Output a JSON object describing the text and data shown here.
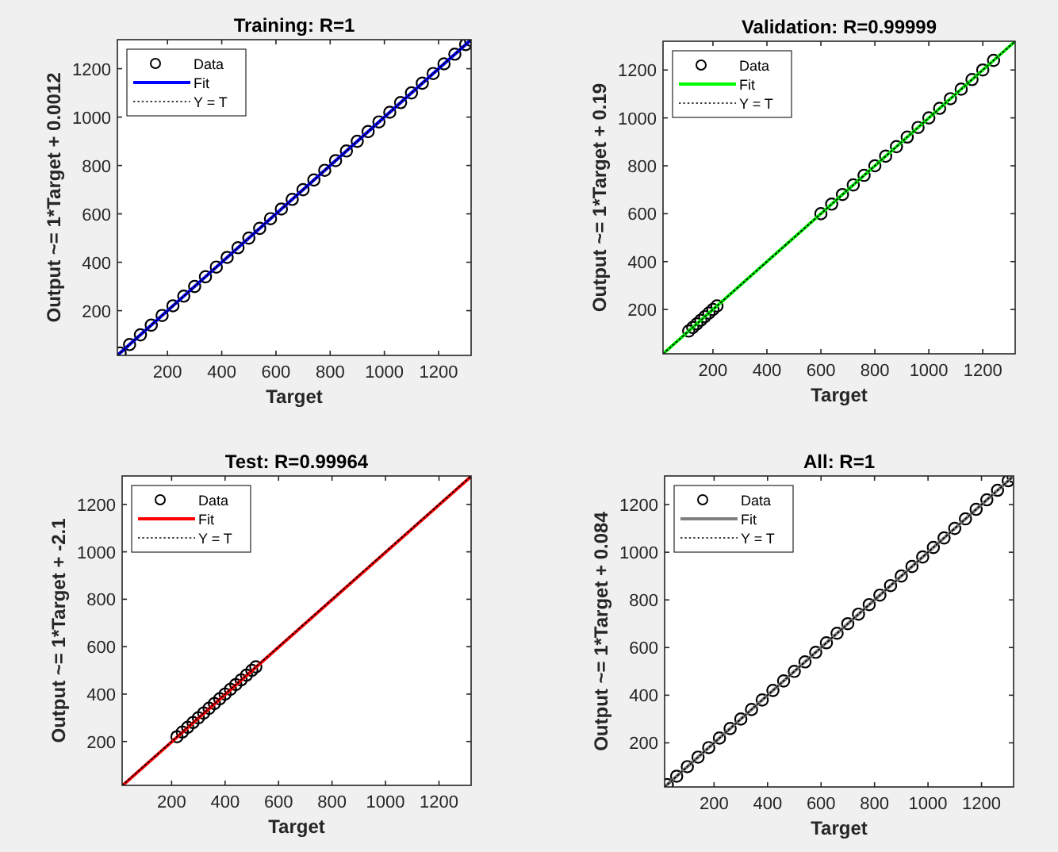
{
  "chart_data": [
    {
      "type": "scatter",
      "title": "Training: R=1",
      "xlabel": "Target",
      "ylabel": "Output ~= 1*Target + 0.0012",
      "xlim": [
        15,
        1320
      ],
      "ylim": [
        15,
        1320
      ],
      "xticks": [
        200,
        400,
        600,
        800,
        1000,
        1200
      ],
      "yticks": [
        200,
        400,
        600,
        800,
        1000,
        1200
      ],
      "grid": false,
      "legend": "top left",
      "series": [
        {
          "name": "Data",
          "marker": "circle",
          "color": "#000000",
          "x": [
            25,
            60,
            100,
            140,
            180,
            220,
            260,
            300,
            340,
            380,
            420,
            460,
            500,
            540,
            580,
            620,
            660,
            700,
            740,
            780,
            820,
            860,
            900,
            940,
            980,
            1020,
            1060,
            1100,
            1140,
            1180,
            1220,
            1260,
            1300,
            1318
          ],
          "values": [
            25,
            60,
            100,
            140,
            180,
            220,
            260,
            300,
            340,
            380,
            420,
            460,
            500,
            540,
            580,
            620,
            660,
            700,
            740,
            780,
            820,
            860,
            900,
            940,
            980,
            1020,
            1060,
            1100,
            1140,
            1180,
            1220,
            1260,
            1300,
            1318
          ]
        },
        {
          "name": "Fit",
          "type": "line",
          "line_style": "solid",
          "color": "#0000ff",
          "x": [
            15,
            1320
          ],
          "values": [
            15,
            1320
          ]
        },
        {
          "name": "Y = T",
          "type": "line",
          "line_style": "dotted",
          "color": "#000000",
          "x": [
            15,
            1320
          ],
          "values": [
            15,
            1320
          ]
        }
      ]
    },
    {
      "type": "scatter",
      "title": "Validation: R=0.99999",
      "xlabel": "Target",
      "ylabel": "Output ~= 1*Target + 0.19",
      "xlim": [
        15,
        1320
      ],
      "ylim": [
        15,
        1320
      ],
      "xticks": [
        200,
        400,
        600,
        800,
        1000,
        1200
      ],
      "yticks": [
        200,
        400,
        600,
        800,
        1000,
        1200
      ],
      "grid": false,
      "legend": "top left",
      "series": [
        {
          "name": "Data",
          "marker": "circle",
          "color": "#000000",
          "x": [
            110,
            125,
            140,
            155,
            170,
            185,
            200,
            215,
            600,
            640,
            680,
            720,
            760,
            800,
            840,
            880,
            920,
            960,
            1000,
            1040,
            1080,
            1120,
            1160,
            1200,
            1240
          ],
          "values": [
            110,
            125,
            140,
            155,
            170,
            185,
            200,
            215,
            600,
            640,
            680,
            720,
            760,
            800,
            840,
            880,
            920,
            960,
            1000,
            1040,
            1080,
            1120,
            1160,
            1200,
            1240
          ]
        },
        {
          "name": "Fit",
          "type": "line",
          "line_style": "solid",
          "color": "#00ff00",
          "x": [
            15,
            1320
          ],
          "values": [
            15,
            1320
          ]
        },
        {
          "name": "Y = T",
          "type": "line",
          "line_style": "dotted",
          "color": "#000000",
          "x": [
            15,
            1320
          ],
          "values": [
            15,
            1320
          ]
        }
      ]
    },
    {
      "type": "scatter",
      "title": "Test: R=0.99964",
      "xlabel": "Target",
      "ylabel": "Output ~= 1*Target + -2.1",
      "xlim": [
        15,
        1320
      ],
      "ylim": [
        15,
        1320
      ],
      "xticks": [
        200,
        400,
        600,
        800,
        1000,
        1200
      ],
      "yticks": [
        200,
        400,
        600,
        800,
        1000,
        1200
      ],
      "grid": false,
      "legend": "top left",
      "series": [
        {
          "name": "Data",
          "marker": "circle",
          "color": "#000000",
          "x": [
            220,
            240,
            260,
            280,
            300,
            320,
            340,
            360,
            380,
            400,
            420,
            440,
            460,
            480,
            500,
            515
          ],
          "values": [
            220,
            240,
            260,
            280,
            300,
            320,
            340,
            360,
            380,
            400,
            420,
            440,
            460,
            480,
            500,
            515
          ]
        },
        {
          "name": "Fit",
          "type": "line",
          "line_style": "solid",
          "color": "#ff0000",
          "x": [
            17,
            1320
          ],
          "values": [
            15,
            1318
          ]
        },
        {
          "name": "Y = T",
          "type": "line",
          "line_style": "dotted",
          "color": "#000000",
          "x": [
            15,
            1320
          ],
          "values": [
            15,
            1320
          ]
        }
      ]
    },
    {
      "type": "scatter",
      "title": "All: R=1",
      "xlabel": "Target",
      "ylabel": "Output ~= 1*Target + 0.084",
      "xlim": [
        15,
        1320
      ],
      "ylim": [
        15,
        1320
      ],
      "xticks": [
        200,
        400,
        600,
        800,
        1000,
        1200
      ],
      "yticks": [
        200,
        400,
        600,
        800,
        1000,
        1200
      ],
      "grid": false,
      "legend": "top left",
      "series": [
        {
          "name": "Data",
          "marker": "circle",
          "color": "#000000",
          "x": [
            25,
            60,
            100,
            140,
            180,
            220,
            260,
            300,
            340,
            380,
            420,
            460,
            500,
            540,
            580,
            620,
            660,
            700,
            740,
            780,
            820,
            860,
            900,
            940,
            980,
            1020,
            1060,
            1100,
            1140,
            1180,
            1220,
            1260,
            1300,
            1318
          ],
          "values": [
            25,
            60,
            100,
            140,
            180,
            220,
            260,
            300,
            340,
            380,
            420,
            460,
            500,
            540,
            580,
            620,
            660,
            700,
            740,
            780,
            820,
            860,
            900,
            940,
            980,
            1020,
            1060,
            1100,
            1140,
            1180,
            1220,
            1260,
            1300,
            1318
          ]
        },
        {
          "name": "Fit",
          "type": "line",
          "line_style": "solid",
          "color": "#808080",
          "x": [
            15,
            1320
          ],
          "values": [
            15,
            1320
          ]
        },
        {
          "name": "Y = T",
          "type": "line",
          "line_style": "dotted",
          "color": "#000000",
          "x": [
            15,
            1320
          ],
          "values": [
            15,
            1320
          ]
        }
      ]
    }
  ]
}
